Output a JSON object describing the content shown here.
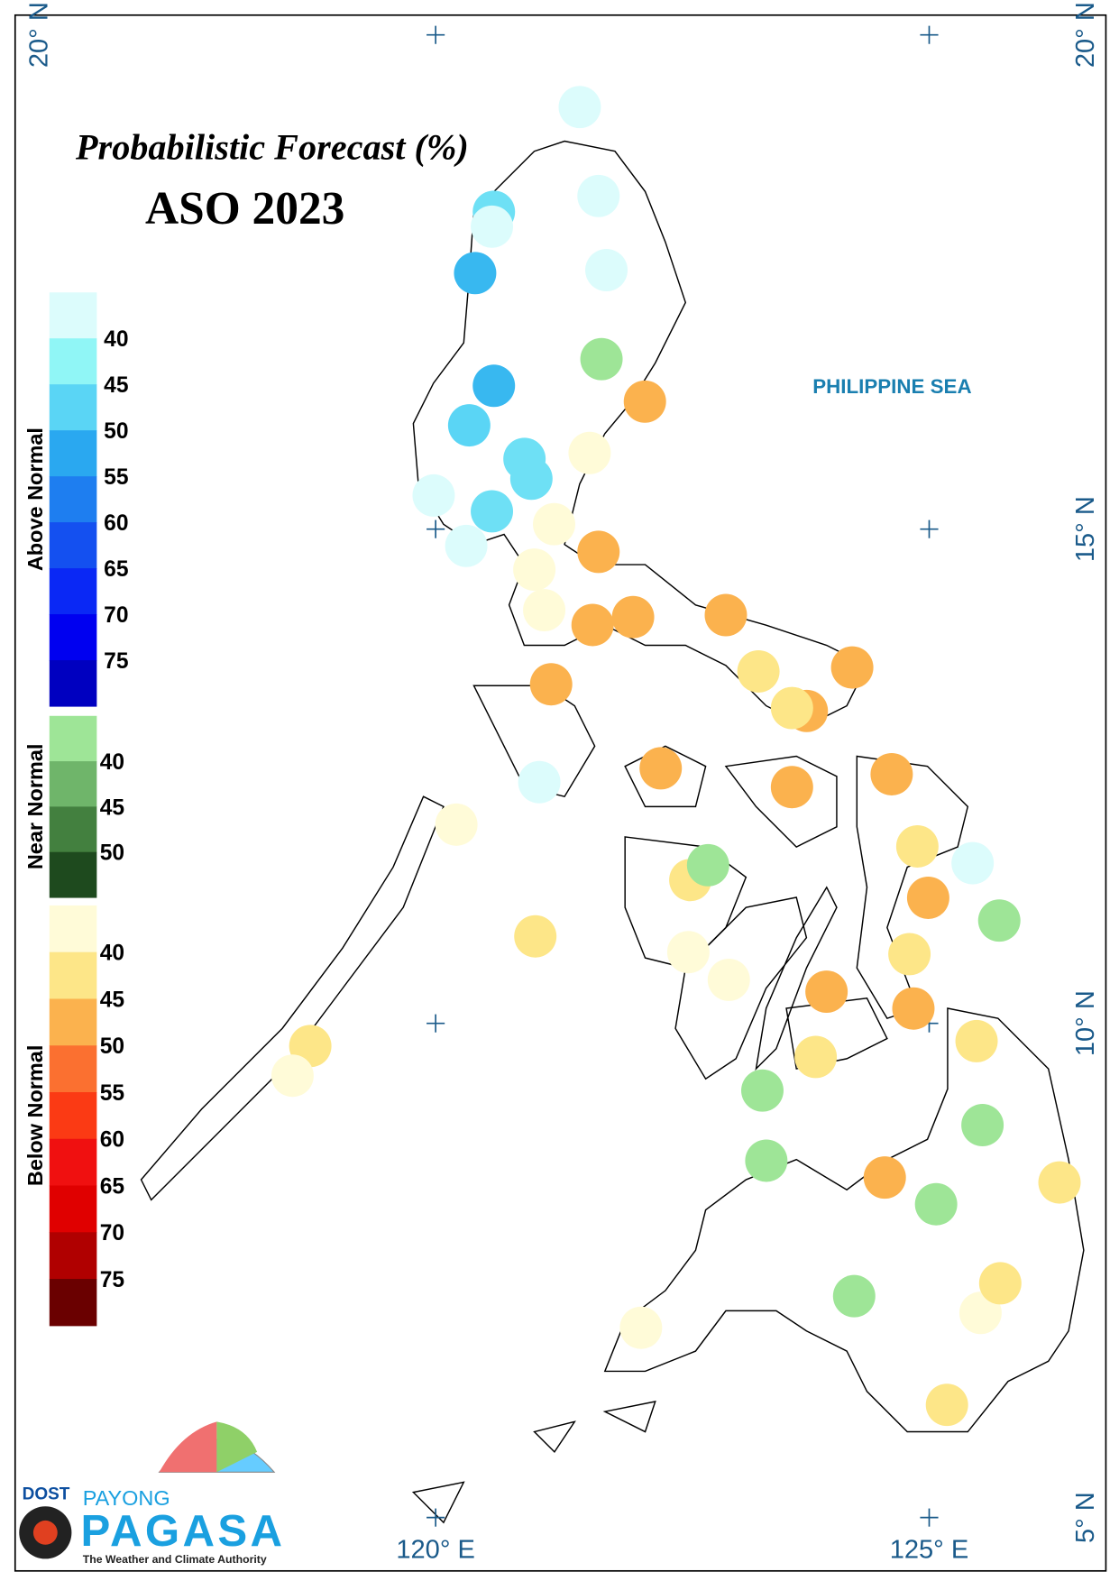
{
  "map": {
    "title": "Probabilistic Forecast (%)",
    "subtitle": "ASO 2023",
    "sea_label": "PHILIPPINE SEA",
    "xlim": [
      115.74,
      126.79
    ],
    "ylim": [
      4.46,
      20.2
    ],
    "lon_ticks": [
      {
        "value": 120,
        "label": "120° E"
      },
      {
        "value": 125,
        "label": "125° E"
      }
    ],
    "lat_ticks": [
      {
        "value": 5,
        "label": "5° N"
      },
      {
        "value": 10,
        "label": "10° N"
      },
      {
        "value": 15,
        "label": "15° N"
      },
      {
        "value": 20,
        "label": "20° N"
      }
    ],
    "stations": [
      {
        "lon": 121.46,
        "lat": 19.27,
        "color": "#dcfcfc"
      },
      {
        "lon": 121.65,
        "lat": 18.37,
        "color": "#dcfcfc"
      },
      {
        "lon": 120.59,
        "lat": 18.21,
        "color": "#6ee0f5"
      },
      {
        "lon": 120.57,
        "lat": 18.06,
        "color": "#dcfcfc"
      },
      {
        "lon": 120.4,
        "lat": 17.59,
        "color": "#38b8f0"
      },
      {
        "lon": 121.73,
        "lat": 17.62,
        "color": "#dcfcfc"
      },
      {
        "lon": 121.68,
        "lat": 16.72,
        "color": "#9ee597"
      },
      {
        "lon": 120.59,
        "lat": 16.45,
        "color": "#38b8f0"
      },
      {
        "lon": 122.12,
        "lat": 16.29,
        "color": "#fbb24e"
      },
      {
        "lon": 120.34,
        "lat": 16.05,
        "color": "#5ad5f5"
      },
      {
        "lon": 121.56,
        "lat": 15.77,
        "color": "#fffbd8"
      },
      {
        "lon": 120.9,
        "lat": 15.71,
        "color": "#6ee0f5"
      },
      {
        "lon": 120.97,
        "lat": 15.51,
        "color": "#6ee0f5"
      },
      {
        "lon": 119.98,
        "lat": 15.34,
        "color": "#dcfcfc"
      },
      {
        "lon": 120.57,
        "lat": 15.18,
        "color": "#6ee0f5"
      },
      {
        "lon": 121.2,
        "lat": 15.05,
        "color": "#fffbd8"
      },
      {
        "lon": 120.31,
        "lat": 14.83,
        "color": "#dcfcfc"
      },
      {
        "lon": 121.65,
        "lat": 14.77,
        "color": "#fbb24e"
      },
      {
        "lon": 121.0,
        "lat": 14.59,
        "color": "#fffbd8"
      },
      {
        "lon": 121.1,
        "lat": 14.18,
        "color": "#fffbd8"
      },
      {
        "lon": 121.59,
        "lat": 14.03,
        "color": "#fbb24e"
      },
      {
        "lon": 122.0,
        "lat": 14.11,
        "color": "#fbb24e"
      },
      {
        "lon": 122.94,
        "lat": 14.13,
        "color": "#fbb24e"
      },
      {
        "lon": 123.27,
        "lat": 13.56,
        "color": "#fde688"
      },
      {
        "lon": 124.22,
        "lat": 13.6,
        "color": "#fbb24e"
      },
      {
        "lon": 121.17,
        "lat": 13.43,
        "color": "#fbb24e"
      },
      {
        "lon": 123.76,
        "lat": 13.16,
        "color": "#fbb24e"
      },
      {
        "lon": 123.61,
        "lat": 13.19,
        "color": "#fde688"
      },
      {
        "lon": 121.05,
        "lat": 12.44,
        "color": "#dcfcfc"
      },
      {
        "lon": 122.28,
        "lat": 12.58,
        "color": "#fbb24e"
      },
      {
        "lon": 123.61,
        "lat": 12.39,
        "color": "#fbb24e"
      },
      {
        "lon": 124.62,
        "lat": 12.52,
        "color": "#fbb24e"
      },
      {
        "lon": 120.21,
        "lat": 12.01,
        "color": "#fffbd8"
      },
      {
        "lon": 124.88,
        "lat": 11.79,
        "color": "#fde688"
      },
      {
        "lon": 122.58,
        "lat": 11.45,
        "color": "#fde688"
      },
      {
        "lon": 122.76,
        "lat": 11.6,
        "color": "#9ee597"
      },
      {
        "lon": 125.44,
        "lat": 11.62,
        "color": "#dcfcfc"
      },
      {
        "lon": 124.99,
        "lat": 11.27,
        "color": "#fbb24e"
      },
      {
        "lon": 125.71,
        "lat": 11.04,
        "color": "#9ee597"
      },
      {
        "lon": 121.01,
        "lat": 10.88,
        "color": "#fde688"
      },
      {
        "lon": 122.56,
        "lat": 10.72,
        "color": "#fffbd8"
      },
      {
        "lon": 124.8,
        "lat": 10.7,
        "color": "#fde688"
      },
      {
        "lon": 122.97,
        "lat": 10.44,
        "color": "#fffbd8"
      },
      {
        "lon": 123.96,
        "lat": 10.32,
        "color": "#fbb24e"
      },
      {
        "lon": 124.84,
        "lat": 10.15,
        "color": "#fbb24e"
      },
      {
        "lon": 118.73,
        "lat": 9.77,
        "color": "#fde688"
      },
      {
        "lon": 125.48,
        "lat": 9.82,
        "color": "#fde688"
      },
      {
        "lon": 123.85,
        "lat": 9.66,
        "color": "#fde688"
      },
      {
        "lon": 118.55,
        "lat": 9.47,
        "color": "#fffbd8"
      },
      {
        "lon": 123.31,
        "lat": 9.32,
        "color": "#9ee597"
      },
      {
        "lon": 125.54,
        "lat": 8.97,
        "color": "#9ee597"
      },
      {
        "lon": 123.35,
        "lat": 8.61,
        "color": "#9ee597"
      },
      {
        "lon": 124.55,
        "lat": 8.44,
        "color": "#fbb24e"
      },
      {
        "lon": 126.32,
        "lat": 8.39,
        "color": "#fde688"
      },
      {
        "lon": 125.07,
        "lat": 8.17,
        "color": "#9ee597"
      },
      {
        "lon": 124.24,
        "lat": 7.24,
        "color": "#9ee597"
      },
      {
        "lon": 125.52,
        "lat": 7.07,
        "color": "#fffbd8"
      },
      {
        "lon": 125.72,
        "lat": 7.37,
        "color": "#fde688"
      },
      {
        "lon": 122.08,
        "lat": 6.92,
        "color": "#fffbd8"
      },
      {
        "lon": 125.18,
        "lat": 6.14,
        "color": "#fde688"
      }
    ]
  },
  "legend": {
    "groups": [
      {
        "name": "Above Normal",
        "colors": [
          "#dcfcfc",
          "#90f6f6",
          "#5ad5f5",
          "#2aa8f0",
          "#1e7ef0",
          "#1450f0",
          "#0a28f5",
          "#0000f0",
          "#0000c0"
        ],
        "labels": [
          40,
          45,
          50,
          55,
          60,
          65,
          70,
          75
        ]
      },
      {
        "name": "Near Normal",
        "colors": [
          "#9ee597",
          "#6fb56a",
          "#43803f",
          "#1e4a1e"
        ],
        "labels": [
          40,
          45,
          50
        ]
      },
      {
        "name": "Below Normal",
        "colors": [
          "#fffbd8",
          "#fde688",
          "#fbb24e",
          "#fb7030",
          "#fb3a14",
          "#f01010",
          "#e00000",
          "#b00000",
          "#6a0000"
        ],
        "labels": [
          40,
          45,
          50,
          55,
          60,
          65,
          70,
          75
        ]
      }
    ]
  },
  "logo": {
    "agency": "DOST",
    "brand_top": "PAYONG",
    "brand": "PAGASA",
    "tagline": "The Weather and Climate Authority"
  }
}
